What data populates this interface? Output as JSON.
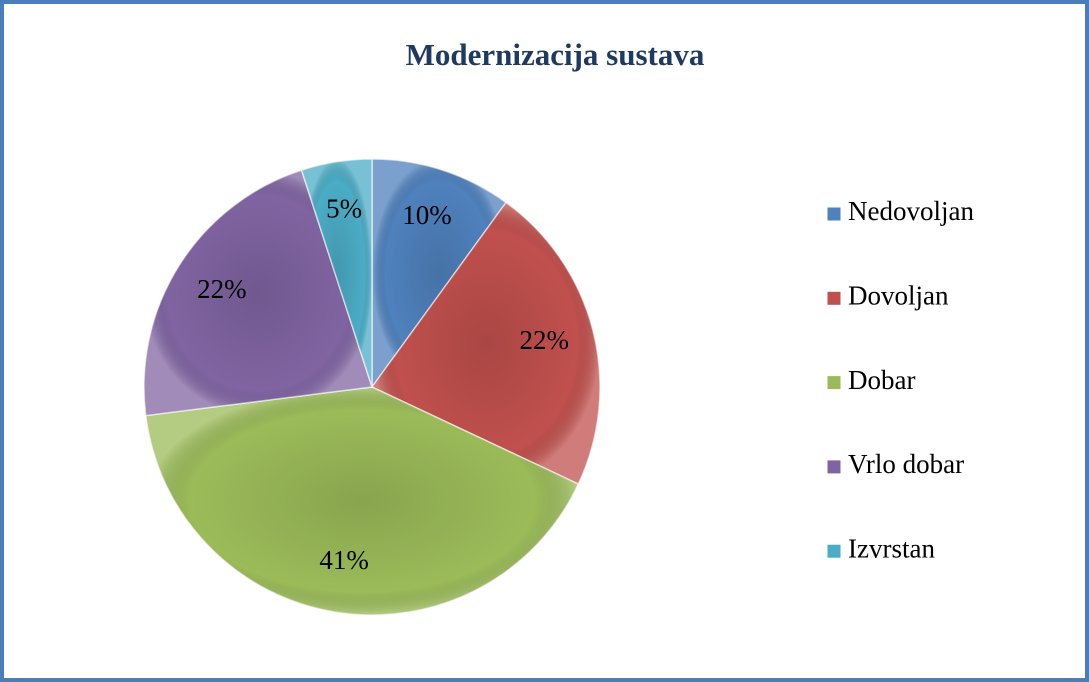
{
  "chart_data": {
    "type": "pie",
    "title": "Modernizacija sustava",
    "categories": [
      "Nedovoljan",
      "Dovoljan",
      "Dobar",
      "Vrlo dobar",
      "Izvrstan"
    ],
    "values": [
      10,
      22,
      41,
      22,
      5
    ],
    "value_labels": [
      "10%",
      "22%",
      "41%",
      "22%",
      "5%"
    ],
    "colors": [
      "#4f81bd",
      "#c0504d",
      "#9bbb59",
      "#8064a2",
      "#4bacc6"
    ],
    "legend": "right"
  }
}
